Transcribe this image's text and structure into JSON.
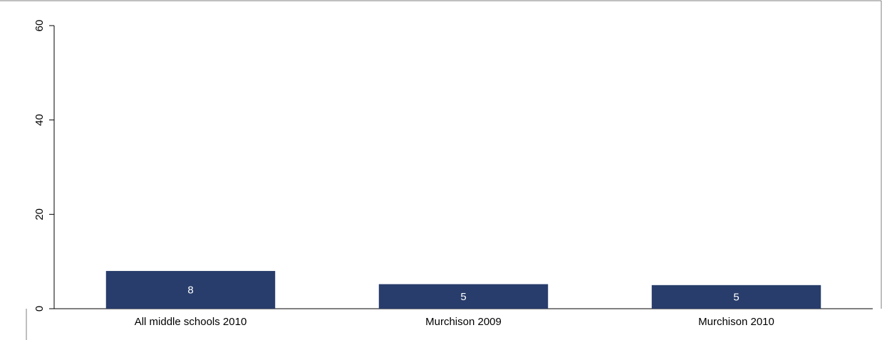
{
  "chart_data": {
    "type": "bar",
    "categories": [
      "All middle schools 2010",
      "Murchison 2009",
      "Murchison 2010"
    ],
    "values": [
      8,
      5.2,
      5.0
    ],
    "data_labels": [
      "8",
      "5",
      "5"
    ],
    "y_ticks": [
      0,
      20,
      40,
      60
    ],
    "ylim": [
      0,
      60
    ],
    "title": "",
    "xlabel": "",
    "ylabel": "",
    "grid": false,
    "bar_color": "#283d6b",
    "frame_color": "#7f7f7f"
  }
}
